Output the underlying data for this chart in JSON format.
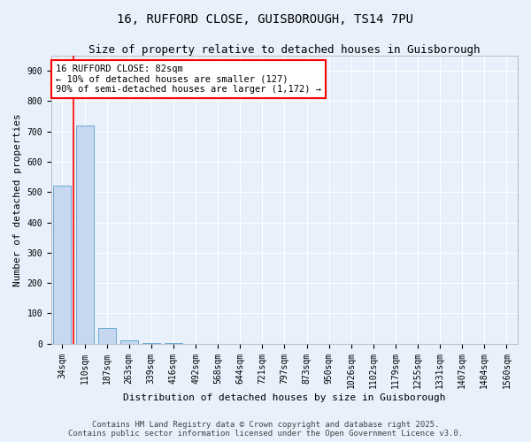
{
  "title": "16, RUFFORD CLOSE, GUISBOROUGH, TS14 7PU",
  "subtitle": "Size of property relative to detached houses in Guisborough",
  "xlabel": "Distribution of detached houses by size in Guisborough",
  "ylabel": "Number of detached properties",
  "categories": [
    "34sqm",
    "110sqm",
    "187sqm",
    "263sqm",
    "339sqm",
    "416sqm",
    "492sqm",
    "568sqm",
    "644sqm",
    "721sqm",
    "797sqm",
    "873sqm",
    "950sqm",
    "1026sqm",
    "1102sqm",
    "1179sqm",
    "1255sqm",
    "1331sqm",
    "1407sqm",
    "1484sqm",
    "1560sqm"
  ],
  "values": [
    520,
    720,
    50,
    10,
    3,
    1,
    0,
    0,
    0,
    0,
    0,
    0,
    0,
    0,
    0,
    0,
    0,
    0,
    0,
    0,
    0
  ],
  "bar_color": "#c5d8f0",
  "bar_edge_color": "#6aaad4",
  "red_line_x": 0.5,
  "annotation_text": "16 RUFFORD CLOSE: 82sqm\n← 10% of detached houses are smaller (127)\n90% of semi-detached houses are larger (1,172) →",
  "annotation_box_color": "white",
  "annotation_box_edge_color": "red",
  "ylim": [
    0,
    950
  ],
  "yticks": [
    0,
    100,
    200,
    300,
    400,
    500,
    600,
    700,
    800,
    900
  ],
  "background_color": "#e8f0fb",
  "grid_color": "white",
  "footer": "Contains HM Land Registry data © Crown copyright and database right 2025.\nContains public sector information licensed under the Open Government Licence v3.0.",
  "title_fontsize": 10,
  "subtitle_fontsize": 9,
  "xlabel_fontsize": 8,
  "ylabel_fontsize": 8,
  "tick_fontsize": 7,
  "annotation_fontsize": 7.5,
  "footer_fontsize": 6.5
}
